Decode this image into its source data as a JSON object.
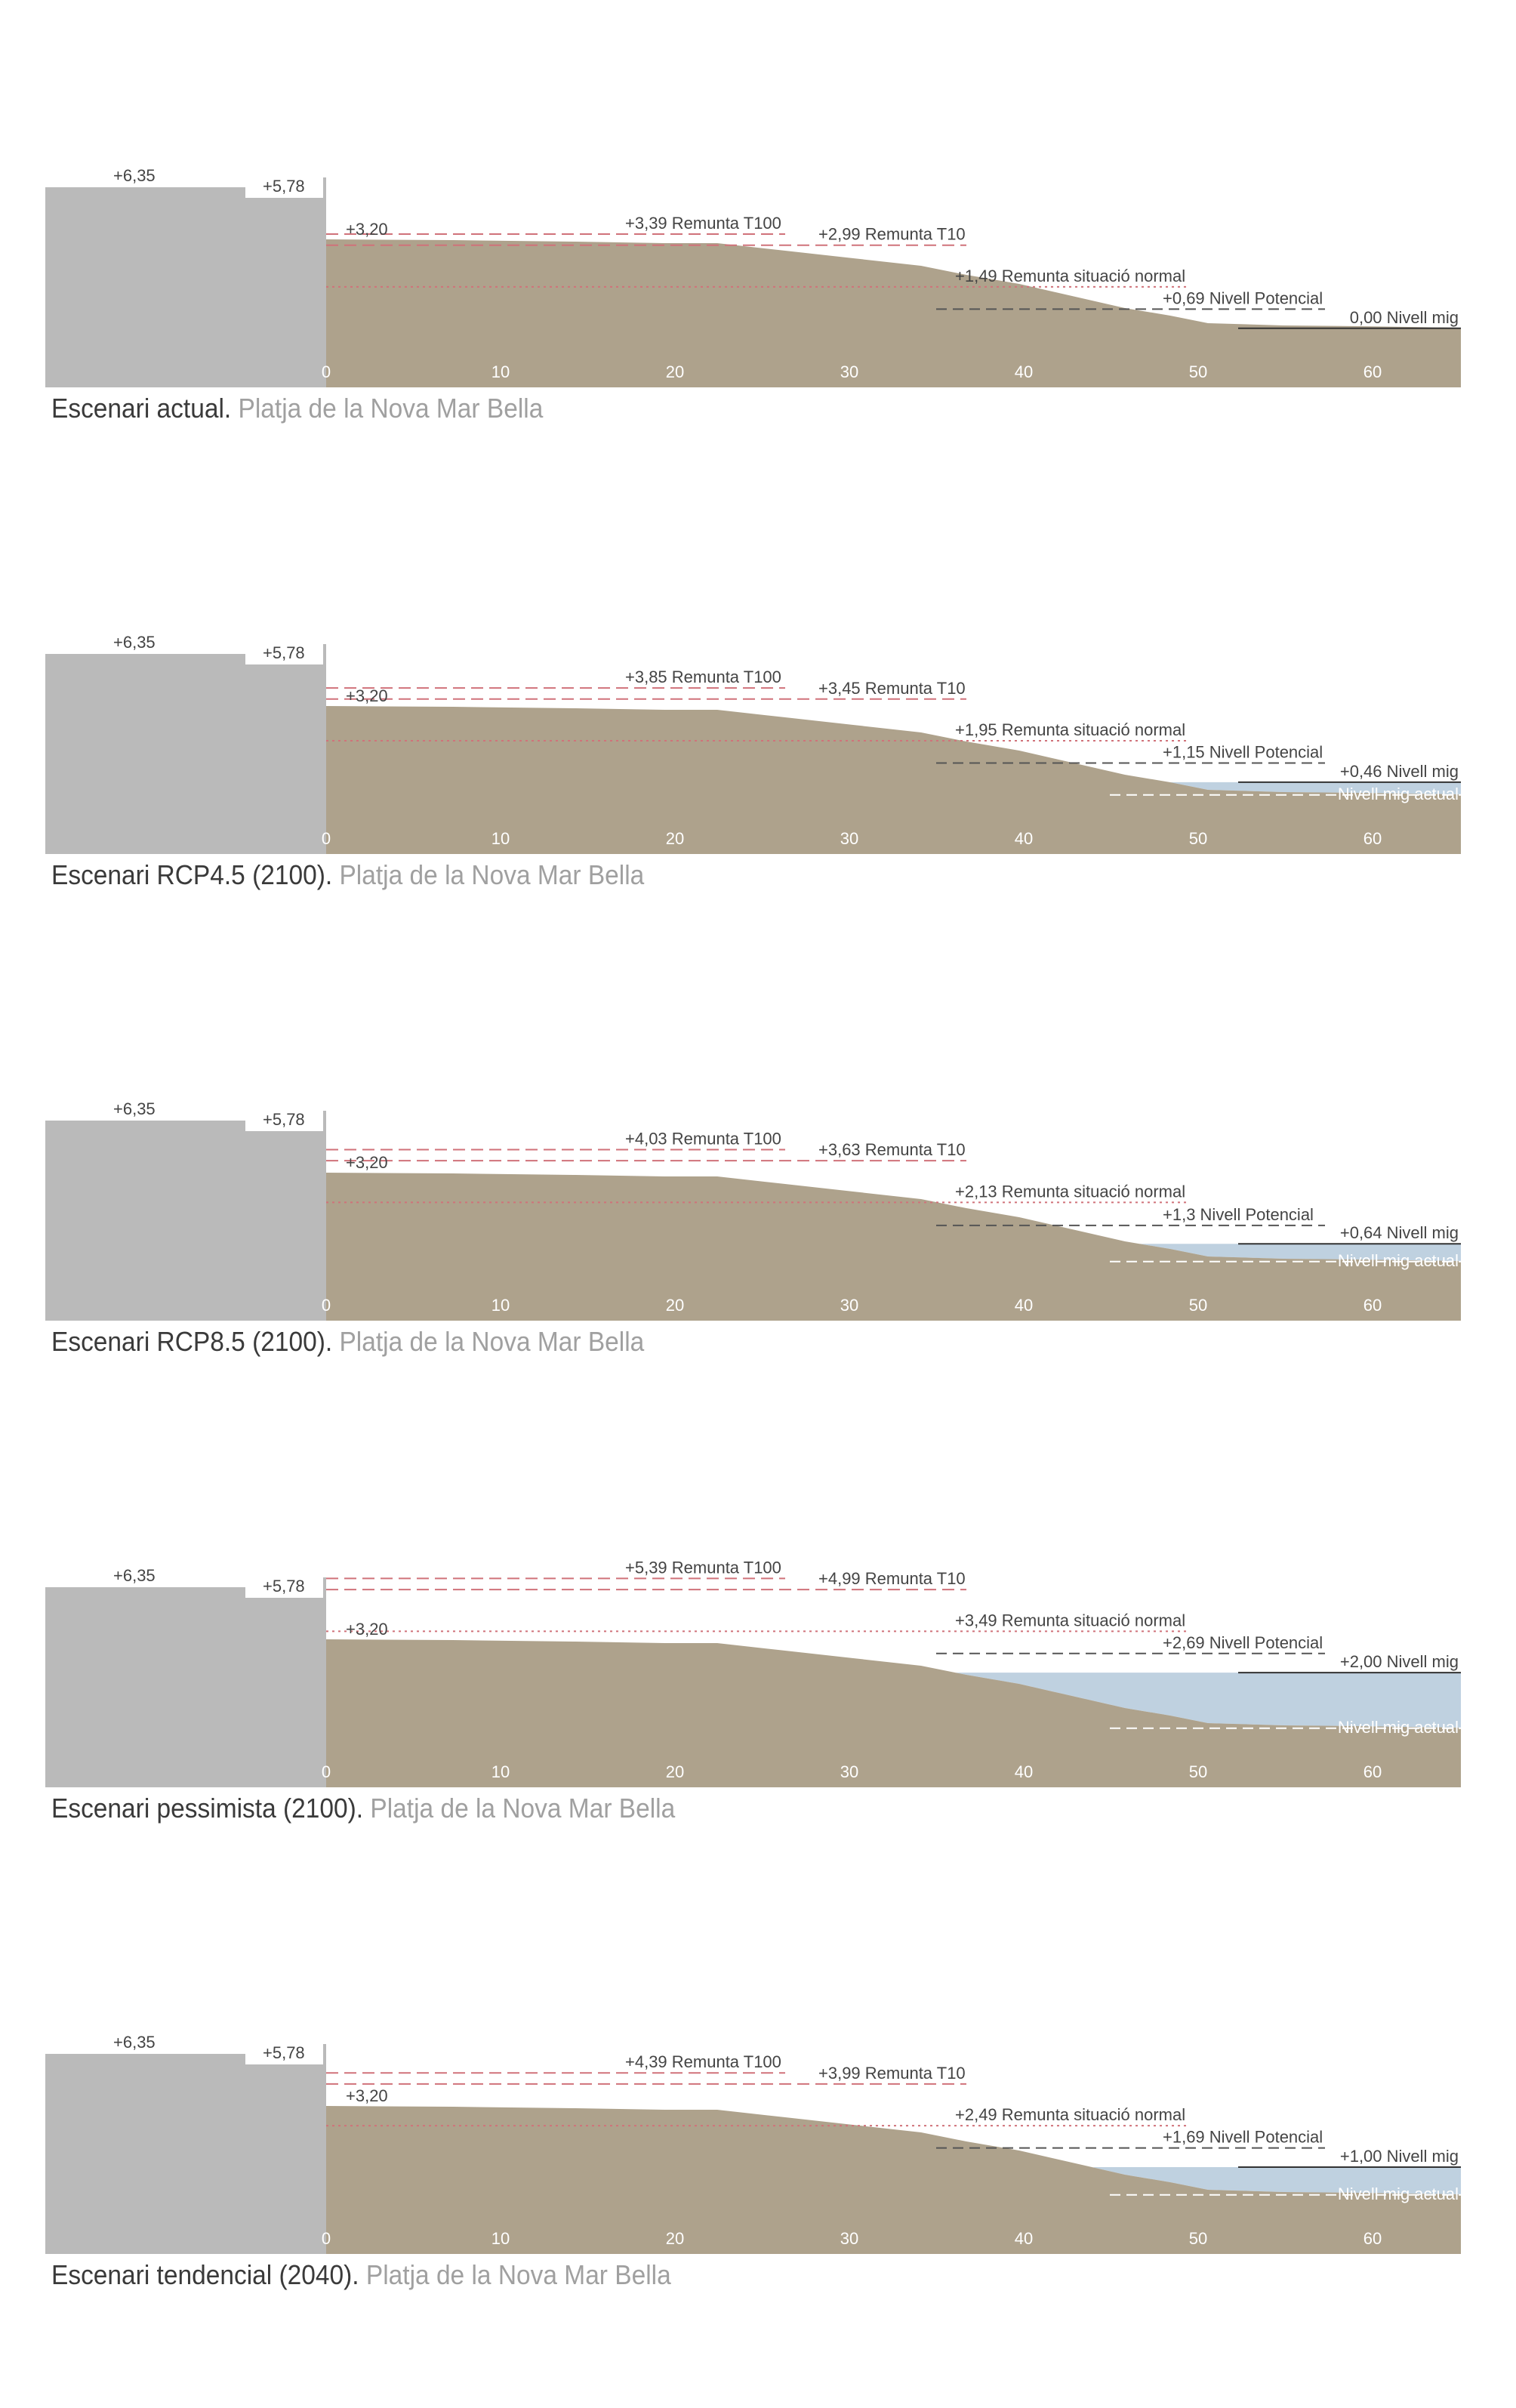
{
  "colors": {
    "ground": "#aea28c",
    "building": "#bababa",
    "water": "#bfd1e0",
    "red_dash": "#d0727a",
    "dark_dash": "#555555",
    "label": "#444444",
    "axis_tick": "#ffffff"
  },
  "common": {
    "building_labels": [
      "+6,35",
      "+5,78"
    ],
    "ground_label": "+3,20",
    "x_ticks": [
      "0",
      "10",
      "20",
      "30",
      "40",
      "50",
      "60"
    ],
    "current_water_label": "Nivell mig actual"
  },
  "panels": [
    {
      "caption_main": "Escenari actual.",
      "caption_place": "Platja de la Nova Mar Bella",
      "water_level": 0.0,
      "show_current_level": false,
      "lines": [
        {
          "label": "+3,39 Remunta T100",
          "level": 3.39,
          "style": "red-dash"
        },
        {
          "label": "+2,99 Remunta T10",
          "level": 2.99,
          "style": "red-dash"
        },
        {
          "label": "+1,49 Remunta situació normal",
          "level": 1.49,
          "style": "dark-dot"
        },
        {
          "label": "+0,69 Nivell Potencial",
          "level": 0.69,
          "style": "dark-dash"
        },
        {
          "label": "0,00 Nivell mig",
          "level": 0.0,
          "style": "solid"
        }
      ]
    },
    {
      "caption_main": "Escenari RCP4.5 (2100).",
      "caption_place": "Platja de la Nova Mar Bella",
      "water_level": 0.46,
      "show_current_level": true,
      "lines": [
        {
          "label": "+3,85 Remunta T100",
          "level": 3.85,
          "style": "red-dash"
        },
        {
          "label": "+3,45 Remunta T10",
          "level": 3.45,
          "style": "red-dash"
        },
        {
          "label": "+1,95 Remunta situació normal",
          "level": 1.95,
          "style": "dark-dot"
        },
        {
          "label": "+1,15 Nivell Potencial",
          "level": 1.15,
          "style": "dark-dash"
        },
        {
          "label": "+0,46 Nivell mig",
          "level": 0.46,
          "style": "solid"
        }
      ]
    },
    {
      "caption_main": "Escenari RCP8.5 (2100).",
      "caption_place": "Platja de la Nova Mar Bella",
      "water_level": 0.64,
      "show_current_level": true,
      "lines": [
        {
          "label": "+4,03 Remunta T100",
          "level": 4.03,
          "style": "red-dash"
        },
        {
          "label": "+3,63 Remunta T10",
          "level": 3.63,
          "style": "red-dash"
        },
        {
          "label": "+2,13 Remunta situació normal",
          "level": 2.13,
          "style": "dark-dot"
        },
        {
          "label": "+1,3 Nivell Potencial",
          "level": 1.3,
          "style": "dark-dash"
        },
        {
          "label": "+0,64 Nivell mig",
          "level": 0.64,
          "style": "solid"
        }
      ]
    },
    {
      "caption_main": "Escenari pessimista (2100).",
      "caption_place": "Platja de la Nova Mar Bella",
      "water_level": 2.0,
      "show_current_level": true,
      "lines": [
        {
          "label": "+5,39 Remunta T100",
          "level": 5.39,
          "style": "red-dash"
        },
        {
          "label": "+4,99 Remunta T10",
          "level": 4.99,
          "style": "red-dash"
        },
        {
          "label": "+3,49 Remunta situació normal",
          "level": 3.49,
          "style": "dark-dot"
        },
        {
          "label": "+2,69 Nivell Potencial",
          "level": 2.69,
          "style": "dark-dash"
        },
        {
          "label": "+2,00 Nivell mig",
          "level": 2.0,
          "style": "solid"
        }
      ]
    },
    {
      "caption_main": "Escenari tendencial (2040).",
      "caption_place": "Platja de la Nova Mar Bella",
      "water_level": 1.0,
      "show_current_level": true,
      "lines": [
        {
          "label": "+4,39 Remunta T100",
          "level": 4.39,
          "style": "red-dash"
        },
        {
          "label": "+3,99 Remunta T10",
          "level": 3.99,
          "style": "red-dash"
        },
        {
          "label": "+2,49 Remunta situació normal",
          "level": 2.49,
          "style": "dark-dot"
        },
        {
          "label": "+1,69 Nivell Potencial",
          "level": 1.69,
          "style": "dark-dash"
        },
        {
          "label": "+1,00 Nivell mig",
          "level": 1.0,
          "style": "solid"
        }
      ]
    }
  ]
}
